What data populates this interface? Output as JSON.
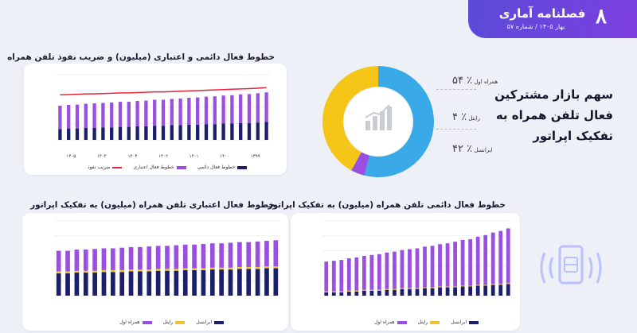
{
  "header": {
    "number": "۸",
    "brand": "فصلنامه آماری",
    "issue": "بهار ۱۴۰۵ / شماره ۵۷"
  },
  "side_title": "سهم بازار مشترکین فعال تلفن همراه به تفکیک اپراتور",
  "share": {
    "items": [
      {
        "label": "همراه اول",
        "pct": "۵۴ ٪"
      },
      {
        "label": "رایتل",
        "pct": "۴ ٪"
      },
      {
        "label": "ایرانسل",
        "pct": "۴۲ ٪"
      }
    ]
  },
  "colors": {
    "mci": "#9b4fe0",
    "rightel": "#f0c230",
    "irancell": "#1a1e6b",
    "penetration": "#e8243c",
    "donut_blue": "#3aa9e8",
    "donut_yellow": "#f5c518",
    "donut_purple": "#9b4fe0"
  },
  "chart_titles": {
    "top": "خطوط فعال دائمی و اعتباری (میلیون) و ضریب نفوذ تلفن همراه",
    "bottom_left": "خطوط فعال اعتباری تلفن همراه (میلیون) به تفکیک اپراتور",
    "bottom_right": "خطوط فعال دائمی تلفن همراه (میلیون) به تفکیک اپراتور"
  },
  "legends": {
    "top": [
      "خطوط فعال دائمی",
      "خطوط فعال اعتباری",
      "ضریب نفوذ"
    ],
    "operators": [
      "ایرانسل",
      "رایتل",
      "همراه اول"
    ]
  },
  "chart_data": [
    {
      "type": "bar",
      "title": "خطوط فعال دائمی و اعتباری (میلیون) و ضریب نفوذ تلفن همراه",
      "year_labels": [
        "۱۳۹۹",
        "۱۴۰۰",
        "۱۴۰۱",
        "۱۴۰۲",
        "۱۴۰۳",
        "۱۴۰۴",
        "۱۴۰۵"
      ],
      "series": [
        {
          "name": "خطوط فعال دائمی",
          "values": [
            20,
            21,
            21,
            22,
            22,
            23,
            23,
            24,
            24,
            25,
            25,
            26,
            26,
            27,
            27,
            28,
            28,
            29,
            29,
            30,
            30,
            31,
            31,
            32,
            33
          ]
        },
        {
          "name": "خطوط فعال اعتباری",
          "values": [
            78,
            79,
            80,
            81,
            82,
            82,
            83,
            84,
            84,
            85,
            86,
            87,
            87,
            88,
            89,
            90,
            91,
            92,
            93,
            94,
            95,
            96,
            97,
            98,
            99
          ]
        },
        {
          "name": "ضریب نفوذ",
          "values": [
            135,
            136,
            137,
            138,
            138,
            139,
            140,
            141,
            141,
            142,
            143,
            144,
            144,
            145,
            146,
            147,
            148,
            149,
            150,
            151,
            152,
            153,
            154,
            155,
            157
          ]
        }
      ],
      "ylim": [
        0,
        120
      ],
      "y2lim": [
        0,
        180
      ]
    },
    {
      "type": "bar",
      "title": "خطوط فعال اعتباری تلفن همراه (میلیون) به تفکیک اپراتور",
      "ylim": [
        0,
        120
      ],
      "series": [
        {
          "name": "ایرانسل",
          "values": [
            36,
            36,
            37,
            37,
            37,
            38,
            38,
            38,
            39,
            39,
            39,
            40,
            40,
            40,
            41,
            41,
            41,
            42,
            42,
            42,
            43,
            43,
            43,
            44,
            44
          ]
        },
        {
          "name": "رایتل",
          "values": [
            3,
            3,
            3,
            3,
            3,
            3,
            3,
            3,
            3,
            3,
            3,
            3,
            3,
            3,
            3,
            3,
            3,
            3,
            3,
            3,
            3,
            3,
            3,
            3,
            3
          ]
        },
        {
          "name": "همراه اول",
          "values": [
            33,
            33,
            34,
            34,
            35,
            35,
            35,
            36,
            36,
            36,
            37,
            37,
            37,
            38,
            38,
            38,
            39,
            39,
            39,
            40,
            40,
            40,
            41,
            41,
            42
          ]
        }
      ]
    },
    {
      "type": "bar",
      "title": "خطوط فعال دائمی تلفن همراه (میلیون) به تفکیک اپراتور",
      "ylim": [
        0,
        45
      ],
      "series": [
        {
          "name": "ایرانسل",
          "values": [
            2,
            2,
            2,
            2.5,
            2.5,
            3,
            3,
            3,
            3.5,
            3.5,
            4,
            4,
            4,
            4.5,
            4.5,
            5,
            5,
            5,
            5.5,
            5.5,
            6,
            6,
            6.5,
            6.5,
            7
          ]
        },
        {
          "name": "رایتل",
          "values": [
            0.5,
            0.5,
            0.5,
            0.5,
            0.5,
            0.5,
            0.5,
            0.5,
            0.5,
            0.5,
            0.5,
            0.5,
            0.5,
            0.5,
            0.5,
            0.5,
            0.5,
            0.5,
            0.5,
            0.5,
            0.5,
            0.5,
            0.5,
            0.5,
            0.5
          ]
        },
        {
          "name": "همراه اول",
          "values": [
            18,
            18.5,
            19,
            19.5,
            20,
            20.5,
            21,
            21.5,
            22,
            22.5,
            23,
            23.5,
            24,
            24.5,
            25,
            25.5,
            26,
            27,
            27.5,
            28,
            29,
            30,
            31,
            32,
            33
          ]
        }
      ]
    },
    {
      "type": "pie",
      "series": [
        {
          "name": "سهم بازار",
          "values": [
            54,
            4,
            42
          ]
        }
      ],
      "categories": [
        "همراه اول",
        "رایتل",
        "ایرانسل"
      ]
    }
  ]
}
